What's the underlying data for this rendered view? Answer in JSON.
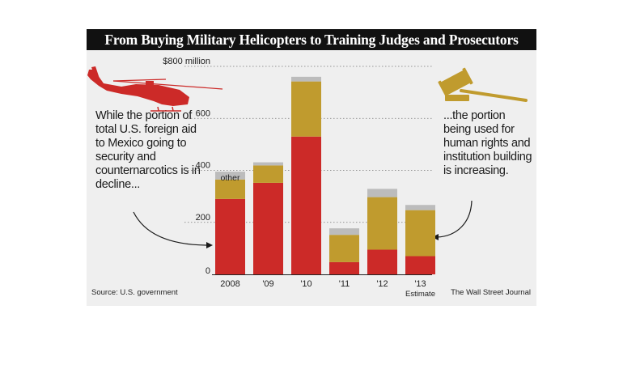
{
  "header": {
    "title": "From Buying Military Helicopters to Training Judges and Prosecutors"
  },
  "annotations": {
    "left": "While the portion of total U.S. foreign aid to Mexico going to security and counternarcotics is in decline...",
    "right": "...the portion being used for human rights and institution building is increasing."
  },
  "footer": {
    "source": "Source: U.S. government",
    "credit": "The Wall Street Journal"
  },
  "icons": {
    "left": "helicopter-icon",
    "right": "gavel-icon"
  },
  "colors": {
    "security": "#cc2a28",
    "institution": "#c09b2e",
    "other": "#bcbcbc",
    "title_bg": "#111111",
    "panel_bg": "#efefef"
  },
  "chart_data": {
    "type": "bar",
    "stacked": true,
    "categories": [
      "2008",
      "'09",
      "'10",
      "'11",
      "'12",
      "'13"
    ],
    "x_sublabels": [
      "",
      "",
      "",
      "",
      "",
      "Estimate"
    ],
    "series": [
      {
        "key": "security",
        "values": [
          290,
          352,
          530,
          47,
          95,
          70
        ]
      },
      {
        "key": "institution",
        "values": [
          75,
          67,
          212,
          105,
          202,
          177
        ]
      },
      {
        "name": "other",
        "values": [
          30,
          12,
          18,
          25,
          32,
          20
        ]
      }
    ],
    "y_ticks": [
      {
        "value": 0,
        "label": "0"
      },
      {
        "value": 200,
        "label": "200"
      },
      {
        "value": 400,
        "label": "400"
      },
      {
        "value": 600,
        "label": "600"
      },
      {
        "value": 800,
        "label": "$800 million"
      }
    ],
    "ylim": [
      0,
      800
    ],
    "grid": true,
    "other_label": "other"
  }
}
